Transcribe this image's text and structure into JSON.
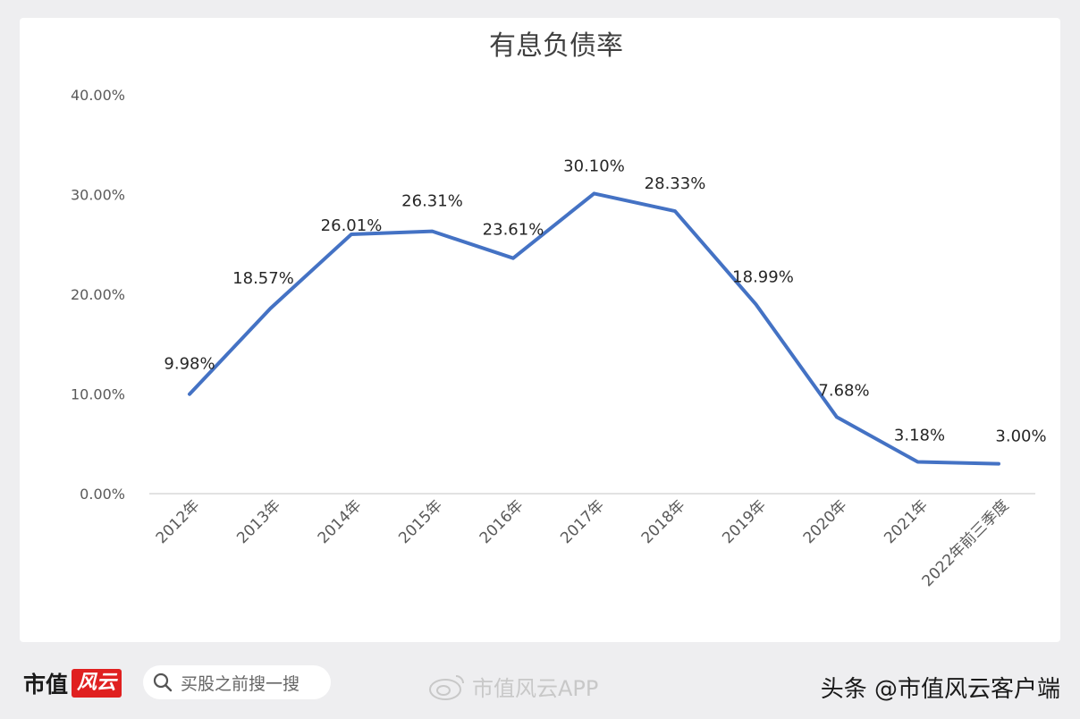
{
  "chart_data": {
    "type": "line",
    "title": "有息负债率",
    "categories": [
      "2012年",
      "2013年",
      "2014年",
      "2015年",
      "2016年",
      "2017年",
      "2018年",
      "2019年",
      "2020年",
      "2021年",
      "2022年前三季度"
    ],
    "series": [
      {
        "values": [
          9.98,
          18.57,
          26.01,
          26.31,
          23.61,
          30.1,
          28.33,
          18.99,
          7.68,
          3.18,
          3.0
        ],
        "labels": [
          "9.98%",
          "18.57%",
          "26.01%",
          "26.31%",
          "23.61%",
          "30.10%",
          "28.33%",
          "18.99%",
          "7.68%",
          "3.18%",
          "3.00%"
        ],
        "color": "#4472c4"
      }
    ],
    "yticks": [
      "0.00%",
      "10.00%",
      "20.00%",
      "30.00%",
      "40.00%"
    ],
    "ylim": [
      0,
      40
    ],
    "grid": false,
    "legend": "none"
  },
  "footer": {
    "brand_name": "市值",
    "brand_logo_text": "风云",
    "search_placeholder": "买股之前搜一搜",
    "watermark_text": "市值风云APP",
    "credit": "头条 @市值风云客户端"
  }
}
